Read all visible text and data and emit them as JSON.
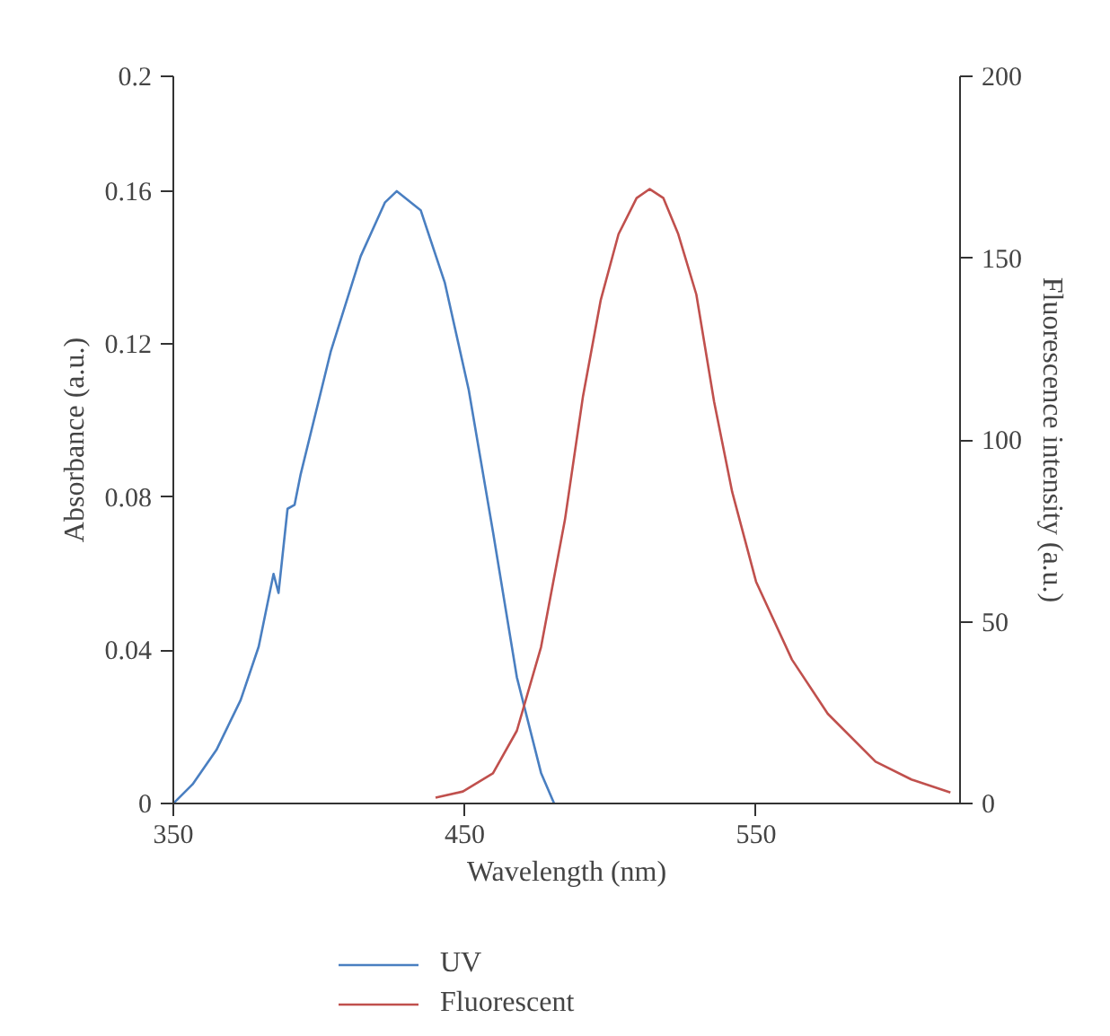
{
  "chart_data": {
    "type": "line",
    "xlabel": "Wavelength (nm)",
    "ylabel": "Absorbance (a.u.)",
    "y2label": "Fluorescence intensity (a.u.)",
    "xlim": [
      350,
      620
    ],
    "xticks": [
      350,
      450,
      550
    ],
    "ylim": [
      0,
      0.19
    ],
    "yticks": [
      0,
      0.04,
      0.08,
      0.12,
      0.16,
      {
        "value": 0.19,
        "label": "0.2"
      }
    ],
    "y2lim": [
      0,
      200
    ],
    "y2ticks": [
      0,
      50,
      100,
      150,
      200
    ],
    "grid": false,
    "legend": "bottom",
    "marker": "none",
    "line_style": "solid",
    "series": [
      {
        "name": "UV",
        "color": "#4a7fc1",
        "x": [
          350,
          356.6,
          364.8,
          373.1,
          379.3,
          384.4,
          386.1,
          389.2,
          391.6,
          393.7,
          404,
          414.3,
          422.6,
          426.7,
          434.9,
          443.2,
          451.4,
          459.7,
          467.9,
          476.2,
          480.7
        ],
        "values": [
          0,
          0.005,
          0.014,
          0.027,
          0.041,
          0.06,
          0.055,
          0.077,
          0.078,
          0.086,
          0.118,
          0.143,
          0.157,
          0.16,
          0.155,
          0.136,
          0.108,
          0.071,
          0.033,
          0.008,
          0
        ]
      },
      {
        "name": "Fluorescent",
        "color": "#c0504d",
        "axis": "y2",
        "x": [
          440,
          449.4,
          459.7,
          467.9,
          476.2,
          484.4,
          490.6,
          496.7,
          502.8,
          509,
          513.5,
          518.2,
          523.3,
          529.5,
          535.6,
          541.8,
          550,
          562.3,
          574.6,
          591,
          603.3,
          616.7
        ],
        "values": [
          1.6,
          3.3,
          8.3,
          20,
          43,
          78,
          112,
          138.5,
          156.6,
          166.5,
          169,
          166.5,
          156.6,
          140,
          110.5,
          85.7,
          61,
          39.6,
          24.7,
          11.5,
          6.6,
          3
        ]
      }
    ]
  }
}
